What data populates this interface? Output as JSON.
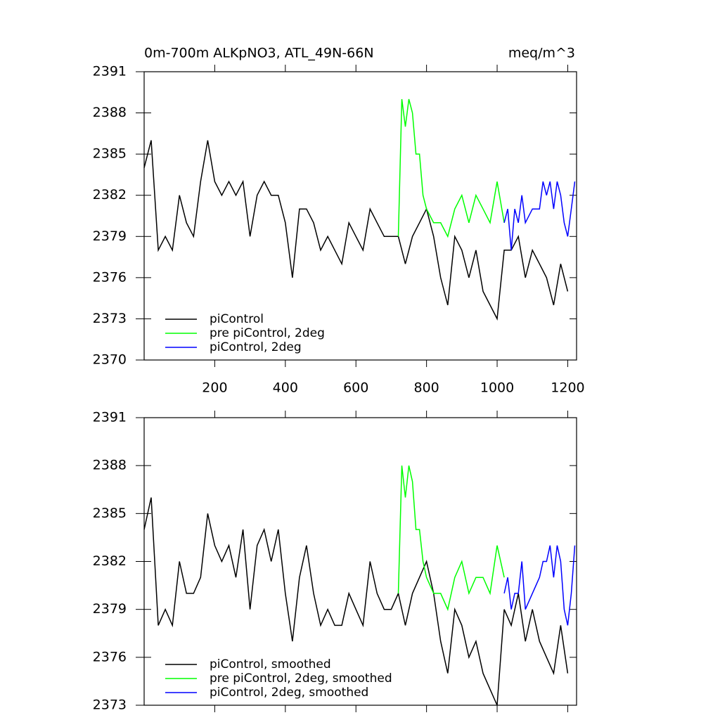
{
  "chart_data": [
    {
      "type": "line",
      "title": "0m-700m ALKpNO3, ATL_49N-66N",
      "units": "meq/m^3",
      "xlim": [
        0,
        1225
      ],
      "xticks": [
        200,
        400,
        600,
        800,
        1000,
        1200
      ],
      "show_xtick_labels": true,
      "ylim": [
        2370,
        2391
      ],
      "yticks": [
        2370,
        2373,
        2376,
        2379,
        2382,
        2385,
        2388,
        2391
      ],
      "series": [
        {
          "name": "piControl",
          "color": "#000000",
          "x": [
            0,
            20,
            40,
            60,
            80,
            100,
            120,
            140,
            160,
            180,
            200,
            220,
            240,
            260,
            280,
            300,
            320,
            340,
            360,
            380,
            400,
            420,
            440,
            460,
            480,
            500,
            520,
            540,
            560,
            580,
            600,
            620,
            640,
            660,
            680,
            700,
            720,
            740,
            760,
            780,
            800,
            820,
            840,
            860,
            880,
            900,
            920,
            940,
            960,
            980,
            1000,
            1020,
            1040,
            1060,
            1080,
            1100,
            1120,
            1140,
            1160,
            1180,
            1200
          ],
          "values": [
            2384,
            2386,
            2378,
            2379,
            2378,
            2382,
            2380,
            2379,
            2383,
            2386,
            2383,
            2382,
            2383,
            2382,
            2383,
            2379,
            2382,
            2383,
            2382,
            2382,
            2380,
            2376,
            2381,
            2381,
            2380,
            2378,
            2379,
            2378,
            2377,
            2380,
            2379,
            2378,
            2381,
            2380,
            2379,
            2379,
            2379,
            2377,
            2379,
            2380,
            2381,
            2379,
            2376,
            2374,
            2379,
            2378,
            2376,
            2378,
            2375,
            2374,
            2373,
            2378,
            2378,
            2379,
            2376,
            2378,
            2377,
            2376,
            2374,
            2377,
            2375
          ]
        },
        {
          "name": "pre piControl, 2deg",
          "color": "#00ff00",
          "x": [
            720,
            730,
            740,
            750,
            760,
            770,
            780,
            790,
            800,
            820,
            840,
            860,
            880,
            900,
            920,
            940,
            960,
            980,
            1000,
            1020
          ],
          "values": [
            2379,
            2389,
            2387,
            2389,
            2388,
            2385,
            2385,
            2382,
            2381,
            2380,
            2380,
            2379,
            2381,
            2382,
            2380,
            2382,
            2381,
            2380,
            2383,
            2380
          ]
        },
        {
          "name": "piControl, 2deg",
          "color": "#0000ff",
          "x": [
            1020,
            1030,
            1040,
            1050,
            1060,
            1070,
            1080,
            1100,
            1120,
            1130,
            1140,
            1150,
            1160,
            1170,
            1180,
            1190,
            1200,
            1210,
            1220
          ],
          "values": [
            2380,
            2381,
            2378,
            2381,
            2380,
            2382,
            2380,
            2381,
            2381,
            2383,
            2382,
            2383,
            2381,
            2383,
            2382,
            2380,
            2379,
            2381,
            2383
          ]
        }
      ]
    },
    {
      "type": "line",
      "xlim": [
        0,
        1225
      ],
      "xticks": [
        200,
        400,
        600,
        800,
        1000,
        1200
      ],
      "show_xtick_labels": false,
      "ylim": [
        2373,
        2391
      ],
      "yticks": [
        2373,
        2376,
        2379,
        2382,
        2385,
        2388,
        2391
      ],
      "series": [
        {
          "name": "piControl, smoothed",
          "color": "#000000",
          "x": [
            0,
            20,
            40,
            60,
            80,
            100,
            120,
            140,
            160,
            180,
            200,
            220,
            240,
            260,
            280,
            300,
            320,
            340,
            360,
            380,
            400,
            420,
            440,
            460,
            480,
            500,
            520,
            540,
            560,
            580,
            600,
            620,
            640,
            660,
            680,
            700,
            720,
            740,
            760,
            780,
            800,
            820,
            840,
            860,
            880,
            900,
            920,
            940,
            960,
            980,
            1000,
            1020,
            1040,
            1060,
            1080,
            1100,
            1120,
            1140,
            1160,
            1180,
            1200
          ],
          "values": [
            2384,
            2386,
            2378,
            2379,
            2378,
            2382,
            2380,
            2380,
            2381,
            2385,
            2383,
            2382,
            2383,
            2381,
            2384,
            2379,
            2383,
            2384,
            2382,
            2384,
            2380,
            2377,
            2381,
            2383,
            2380,
            2378,
            2379,
            2378,
            2378,
            2380,
            2379,
            2378,
            2382,
            2380,
            2379,
            2379,
            2380,
            2378,
            2380,
            2381,
            2382,
            2380,
            2377,
            2375,
            2379,
            2378,
            2376,
            2377,
            2375,
            2374,
            2373,
            2379,
            2378,
            2380,
            2377,
            2379,
            2377,
            2376,
            2375,
            2378,
            2375
          ]
        },
        {
          "name": "pre piControl, 2deg, smoothed",
          "color": "#00ff00",
          "x": [
            720,
            730,
            740,
            750,
            760,
            770,
            780,
            790,
            800,
            820,
            840,
            860,
            880,
            900,
            920,
            940,
            960,
            980,
            1000,
            1020
          ],
          "values": [
            2380,
            2388,
            2386,
            2388,
            2387,
            2384,
            2384,
            2382,
            2381,
            2380,
            2380,
            2379,
            2381,
            2382,
            2380,
            2381,
            2381,
            2380,
            2383,
            2381
          ]
        },
        {
          "name": "piControl, 2deg, smoothed",
          "color": "#0000ff",
          "x": [
            1020,
            1030,
            1040,
            1050,
            1060,
            1070,
            1080,
            1100,
            1120,
            1130,
            1140,
            1150,
            1160,
            1170,
            1180,
            1190,
            1200,
            1210,
            1220
          ],
          "values": [
            2380,
            2381,
            2379,
            2380,
            2380,
            2382,
            2379,
            2380,
            2381,
            2382,
            2382,
            2383,
            2381,
            2383,
            2382,
            2379,
            2378,
            2380,
            2383
          ]
        }
      ]
    }
  ]
}
